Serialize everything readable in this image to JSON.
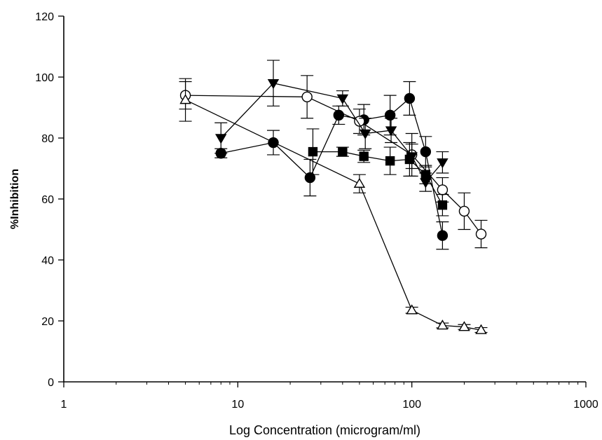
{
  "chart_data": {
    "type": "scatter",
    "title": "",
    "xlabel": "Log Concentration (microgram/ml)",
    "ylabel": "%Inhibition",
    "xscale": "log",
    "xlim": [
      1,
      1000
    ],
    "ylim": [
      0,
      120
    ],
    "xticks": [
      1,
      10,
      100,
      1000
    ],
    "xtick_labels": [
      "1",
      "10",
      "100",
      "1000"
    ],
    "yticks": [
      0,
      20,
      40,
      60,
      80,
      100,
      120
    ],
    "ytick_labels": [
      "0",
      "20",
      "40",
      "60",
      "80",
      "100",
      "120"
    ],
    "grid": false,
    "legend": "none",
    "series": [
      {
        "marker": "filled-circle",
        "color": "#000000",
        "points": [
          {
            "x": 8,
            "y": 75,
            "err": 1.5
          },
          {
            "x": 16,
            "y": 78.5,
            "err": 4
          },
          {
            "x": 26,
            "y": 67,
            "err": 6
          },
          {
            "x": 38,
            "y": 87.5,
            "err": 3
          },
          {
            "x": 53,
            "y": 86,
            "err": 5
          },
          {
            "x": 75,
            "y": 87.5,
            "err": 6.5
          },
          {
            "x": 97,
            "y": 93,
            "err": 5.5
          },
          {
            "x": 120,
            "y": 75.5,
            "err": 5
          },
          {
            "x": 150,
            "y": 48,
            "err": 4.5
          }
        ]
      },
      {
        "marker": "open-circle",
        "color": "#000000",
        "points": [
          {
            "x": 5,
            "y": 94,
            "err": 4.5
          },
          {
            "x": 25,
            "y": 93.5,
            "err": 7
          },
          {
            "x": 50,
            "y": 85.5,
            "err": 4
          },
          {
            "x": 100,
            "y": 74.5,
            "err": 7
          },
          {
            "x": 150,
            "y": 63,
            "err": 4
          },
          {
            "x": 200,
            "y": 56,
            "err": 6
          },
          {
            "x": 250,
            "y": 48.5,
            "err": 4.5
          }
        ]
      },
      {
        "marker": "filled-triangle-down",
        "color": "#000000",
        "points": [
          {
            "x": 8,
            "y": 80,
            "err": 5
          },
          {
            "x": 16,
            "y": 98,
            "err": 7.5
          },
          {
            "x": 40,
            "y": 93,
            "err": 2.5
          },
          {
            "x": 54,
            "y": 81.5,
            "err": 5
          },
          {
            "x": 76,
            "y": 82.5,
            "err": 4
          },
          {
            "x": 100,
            "y": 74,
            "err": 4
          },
          {
            "x": 120,
            "y": 65.5,
            "err": 3
          },
          {
            "x": 150,
            "y": 72,
            "err": 3.5
          }
        ]
      },
      {
        "marker": "filled-square",
        "color": "#000000",
        "points": [
          {
            "x": 27,
            "y": 75.5,
            "err": 7.5
          },
          {
            "x": 40,
            "y": 75.5,
            "err": 1.5
          },
          {
            "x": 53,
            "y": 74,
            "err": 2
          },
          {
            "x": 75,
            "y": 72.5,
            "err": 4.5
          },
          {
            "x": 97,
            "y": 73,
            "err": 5.5
          },
          {
            "x": 120,
            "y": 68,
            "err": 3
          },
          {
            "x": 150,
            "y": 58,
            "err": 3.5
          }
        ]
      },
      {
        "marker": "open-triangle-up",
        "color": "#000000",
        "points": [
          {
            "x": 5,
            "y": 92.5,
            "err": 7
          },
          {
            "x": 50,
            "y": 65,
            "err": 3
          },
          {
            "x": 100,
            "y": 23.5,
            "err": 1
          },
          {
            "x": 150,
            "y": 18.5,
            "err": 0.8
          },
          {
            "x": 200,
            "y": 18,
            "err": 0.8
          },
          {
            "x": 250,
            "y": 17,
            "err": 0.8
          }
        ]
      }
    ]
  }
}
